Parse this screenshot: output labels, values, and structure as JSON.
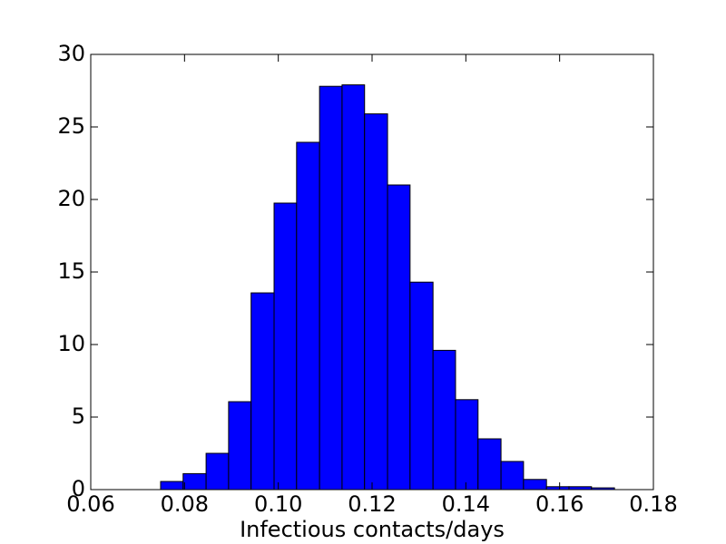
{
  "chart_data": {
    "type": "histogram",
    "xlabel": "Infectious contacts/days",
    "bins": [
      0.0749,
      0.0797,
      0.0846,
      0.0894,
      0.0942,
      0.0991,
      0.1039,
      0.1088,
      0.1136,
      0.1184,
      0.1233,
      0.1281,
      0.133,
      0.1378,
      0.1426,
      0.1475,
      0.1523,
      0.1572,
      0.162,
      0.1668,
      0.1717
    ],
    "values": [
      0.56,
      1.1,
      2.5,
      6.06,
      13.56,
      19.75,
      23.94,
      27.8,
      27.9,
      25.9,
      21,
      14.3,
      9.6,
      6.2,
      3.5,
      1.94,
      0.7,
      0.2,
      0.2,
      0.12
    ],
    "color": "#0000ff",
    "xlim": [
      0.06,
      0.18
    ],
    "xticks": [
      0.06,
      0.08,
      {
        "value": 0.1,
        "label": "0.10"
      },
      0.12,
      0.14,
      0.16,
      0.18
    ],
    "ylim": [
      0,
      30
    ],
    "yticks": [
      0,
      5,
      10,
      15,
      20,
      25,
      30
    ]
  }
}
